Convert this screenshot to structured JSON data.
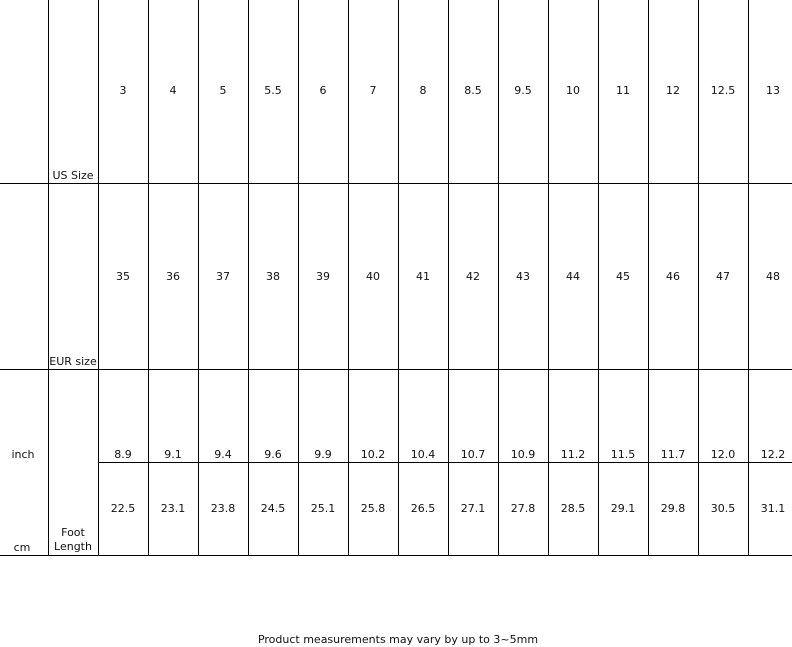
{
  "table": {
    "rows": [
      {
        "label": "US Size",
        "values": [
          "3",
          "4",
          "5",
          "5.5",
          "6",
          "7",
          "8",
          "8.5",
          "9.5",
          "10",
          "11",
          "12",
          "12.5",
          "13"
        ]
      },
      {
        "label": "EUR size",
        "values": [
          "35",
          "36",
          "37",
          "38",
          "39",
          "40",
          "41",
          "42",
          "43",
          "44",
          "45",
          "46",
          "47",
          "48"
        ]
      },
      {
        "label": "inch",
        "values": [
          "8.9",
          "9.1",
          "9.4",
          "9.6",
          "9.9",
          "10.2",
          "10.4",
          "10.7",
          "10.9",
          "11.2",
          "11.5",
          "11.7",
          "12.0",
          "12.2"
        ]
      },
      {
        "label": "cm",
        "values": [
          "22.5",
          "23.1",
          "23.8",
          "24.5",
          "25.1",
          "25.8",
          "26.5",
          "27.1",
          "27.8",
          "28.5",
          "29.1",
          "29.8",
          "30.5",
          "31.1"
        ]
      }
    ],
    "group_label": "Foot Length"
  },
  "footnote": "Product measurements may vary by up to 3~5mm"
}
